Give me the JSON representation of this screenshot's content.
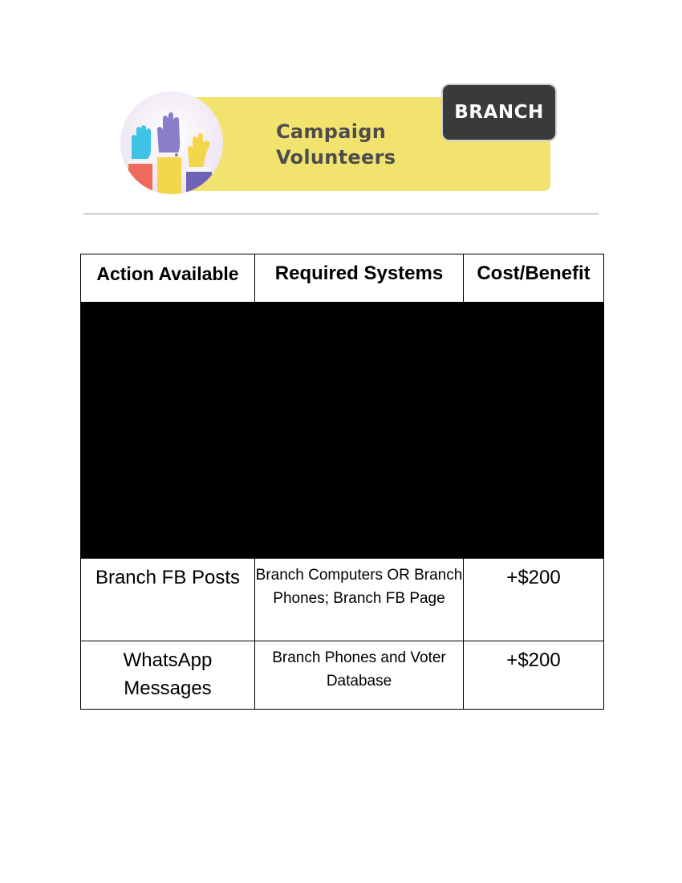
{
  "header": {
    "logo_title_line1": "Campaign",
    "logo_title_line2": "Volunteers",
    "badge": "BRANCH",
    "icon": "raised-hands-icon",
    "colors": {
      "strip": "#f2e36f",
      "badge": "#3a3a3a",
      "title": "#4d4d4d"
    }
  },
  "table": {
    "headers": [
      "Action Available",
      "Required Systems",
      "Cost/Benefit"
    ],
    "rows": [
      {
        "action": "Branch FB Posts",
        "systems": "Branch Computers OR Branch Phones; Branch FB Page",
        "cost": "+$200"
      },
      {
        "action": "WhatsApp Messages",
        "systems": "Branch Phones and Voter Database",
        "cost": "+$200"
      }
    ]
  }
}
